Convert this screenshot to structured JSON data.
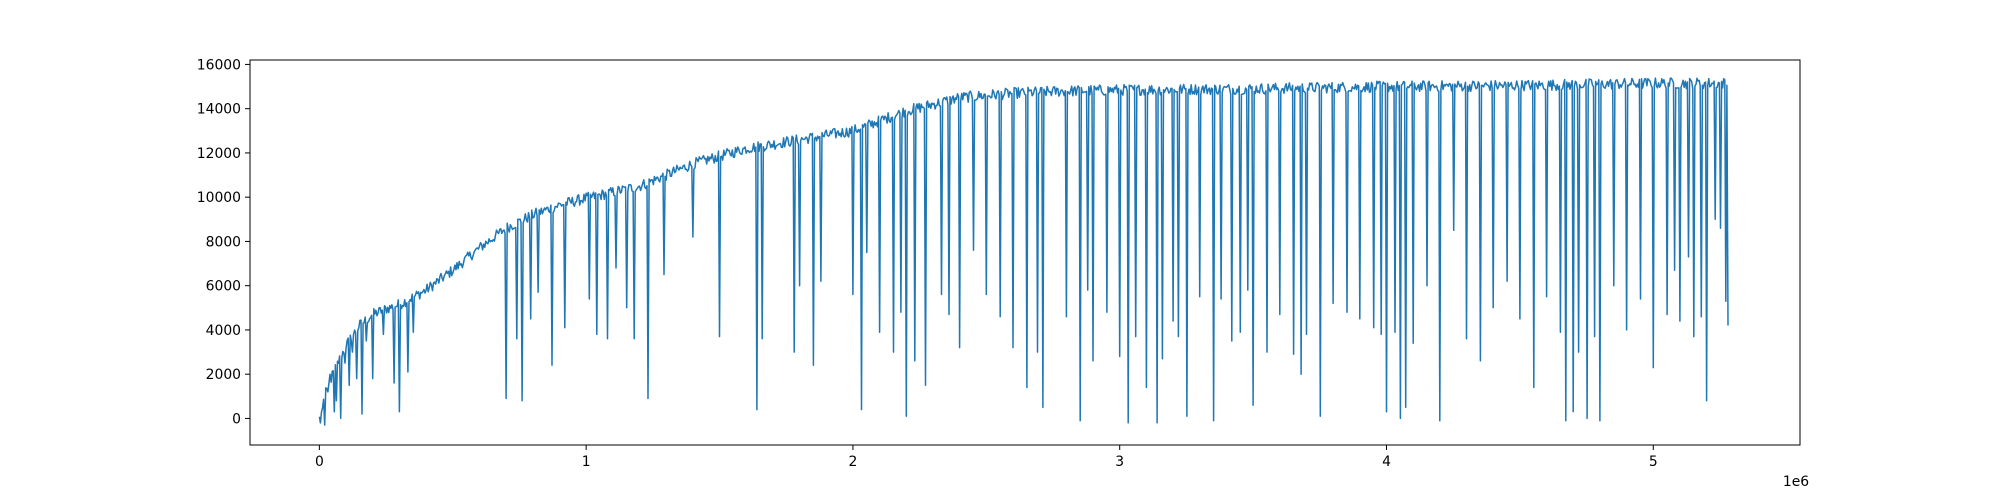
{
  "chart_data": {
    "type": "line",
    "title": "",
    "xlabel": "",
    "ylabel": "",
    "x_offset_text": "1e6",
    "xlim": [
      -260000,
      5550000
    ],
    "ylim": [
      -1200,
      16200
    ],
    "x_ticks": [
      0,
      1000000,
      2000000,
      3000000,
      4000000,
      5000000
    ],
    "x_tick_labels": [
      "0",
      "1",
      "2",
      "3",
      "4",
      "5"
    ],
    "y_ticks": [
      0,
      2000,
      4000,
      6000,
      8000,
      10000,
      12000,
      14000,
      16000
    ],
    "y_tick_labels": [
      "0",
      "2000",
      "4000",
      "6000",
      "8000",
      "10000",
      "12000",
      "14000",
      "16000"
    ],
    "grid": false,
    "legend": "none",
    "series_color": "#1f77b4",
    "series": [
      {
        "trend_x": [
          0,
          20000,
          50000,
          100000,
          150000,
          200000,
          250000,
          300000,
          400000,
          500000,
          600000,
          700000,
          800000,
          900000,
          1000000,
          1200000,
          1400000,
          1600000,
          1800000,
          2000000,
          2200000,
          2400000,
          2600000,
          2800000,
          3000000,
          3500000,
          4000000,
          4500000,
          5000000,
          5280000
        ],
        "trend_y": [
          0,
          1000,
          2000,
          3300,
          4200,
          4700,
          4950,
          5150,
          5800,
          6700,
          7700,
          8600,
          9200,
          9650,
          9950,
          10500,
          11500,
          12200,
          12600,
          13000,
          13900,
          14500,
          14700,
          14800,
          14850,
          14900,
          15000,
          15050,
          15150,
          15150
        ],
        "noise_amplitude": 250,
        "dips_x": [
          5000,
          10000,
          20000,
          30000,
          40000,
          55000,
          65000,
          80000,
          95000,
          110000,
          125000,
          140000,
          160000,
          175000,
          200000,
          240000,
          280000,
          300000,
          330000,
          350000,
          700000,
          740000,
          760000,
          790000,
          820000,
          870000,
          920000,
          1010000,
          1040000,
          1080000,
          1110000,
          1150000,
          1180000,
          1230000,
          1290000,
          1400000,
          1500000,
          1640000,
          1660000,
          1780000,
          1800000,
          1850000,
          1880000,
          2000000,
          2030000,
          2050000,
          2100000,
          2150000,
          2180000,
          2200000,
          2230000,
          2270000,
          2330000,
          2360000,
          2400000,
          2450000,
          2500000,
          2550000,
          2600000,
          2650000,
          2690000,
          2710000,
          2800000,
          2850000,
          2880000,
          2900000,
          2950000,
          3000000,
          3030000,
          3060000,
          3100000,
          3140000,
          3160000,
          3200000,
          3220000,
          3250000,
          3300000,
          3350000,
          3380000,
          3420000,
          3450000,
          3480000,
          3500000,
          3550000,
          3600000,
          3650000,
          3680000,
          3700000,
          3750000,
          3800000,
          3850000,
          3900000,
          3950000,
          3980000,
          4000000,
          4030000,
          4050000,
          4070000,
          4100000,
          4150000,
          4200000,
          4250000,
          4300000,
          4350000,
          4400000,
          4450000,
          4500000,
          4550000,
          4600000,
          4650000,
          4670000,
          4700000,
          4720000,
          4750000,
          4780000,
          4800000,
          4850000,
          4900000,
          4950000,
          5000000,
          5050000,
          5080000,
          5100000,
          5130000,
          5150000,
          5180000,
          5200000,
          5230000,
          5250000,
          5270000,
          5280000
        ],
        "dips_y": [
          -200,
          500,
          -300,
          1200,
          2000,
          300,
          800,
          0,
          2500,
          1500,
          3000,
          1800,
          200,
          3500,
          1800,
          3800,
          1600,
          300,
          2100,
          3900,
          900,
          3600,
          800,
          4500,
          5700,
          2400,
          4100,
          5400,
          3800,
          3600,
          6800,
          5000,
          3600,
          900,
          6500,
          8200,
          3700,
          400,
          3600,
          3000,
          6000,
          2400,
          6200,
          5600,
          400,
          7500,
          3900,
          3000,
          4800,
          100,
          2600,
          1500,
          5600,
          4700,
          3200,
          7600,
          5600,
          4600,
          3200,
          1400,
          3000,
          500,
          4600,
          -100,
          5800,
          2600,
          4800,
          2800,
          -200,
          3700,
          1400,
          -200,
          2700,
          4400,
          3700,
          100,
          5500,
          -100,
          5400,
          3500,
          3900,
          5800,
          600,
          3000,
          4700,
          2900,
          2000,
          3800,
          100,
          5200,
          4800,
          4500,
          4100,
          3800,
          300,
          3900,
          0,
          500,
          3400,
          6000,
          -100,
          8500,
          3600,
          2600,
          5000,
          6200,
          4500,
          1400,
          5500,
          3900,
          -100,
          300,
          3000,
          0,
          3700,
          -100,
          6000,
          4000,
          5400,
          2300,
          4700,
          6700,
          4400,
          7300,
          3700,
          4600,
          800,
          9000,
          8600,
          5300,
          4200,
          7000,
          9100
        ]
      }
    ]
  }
}
